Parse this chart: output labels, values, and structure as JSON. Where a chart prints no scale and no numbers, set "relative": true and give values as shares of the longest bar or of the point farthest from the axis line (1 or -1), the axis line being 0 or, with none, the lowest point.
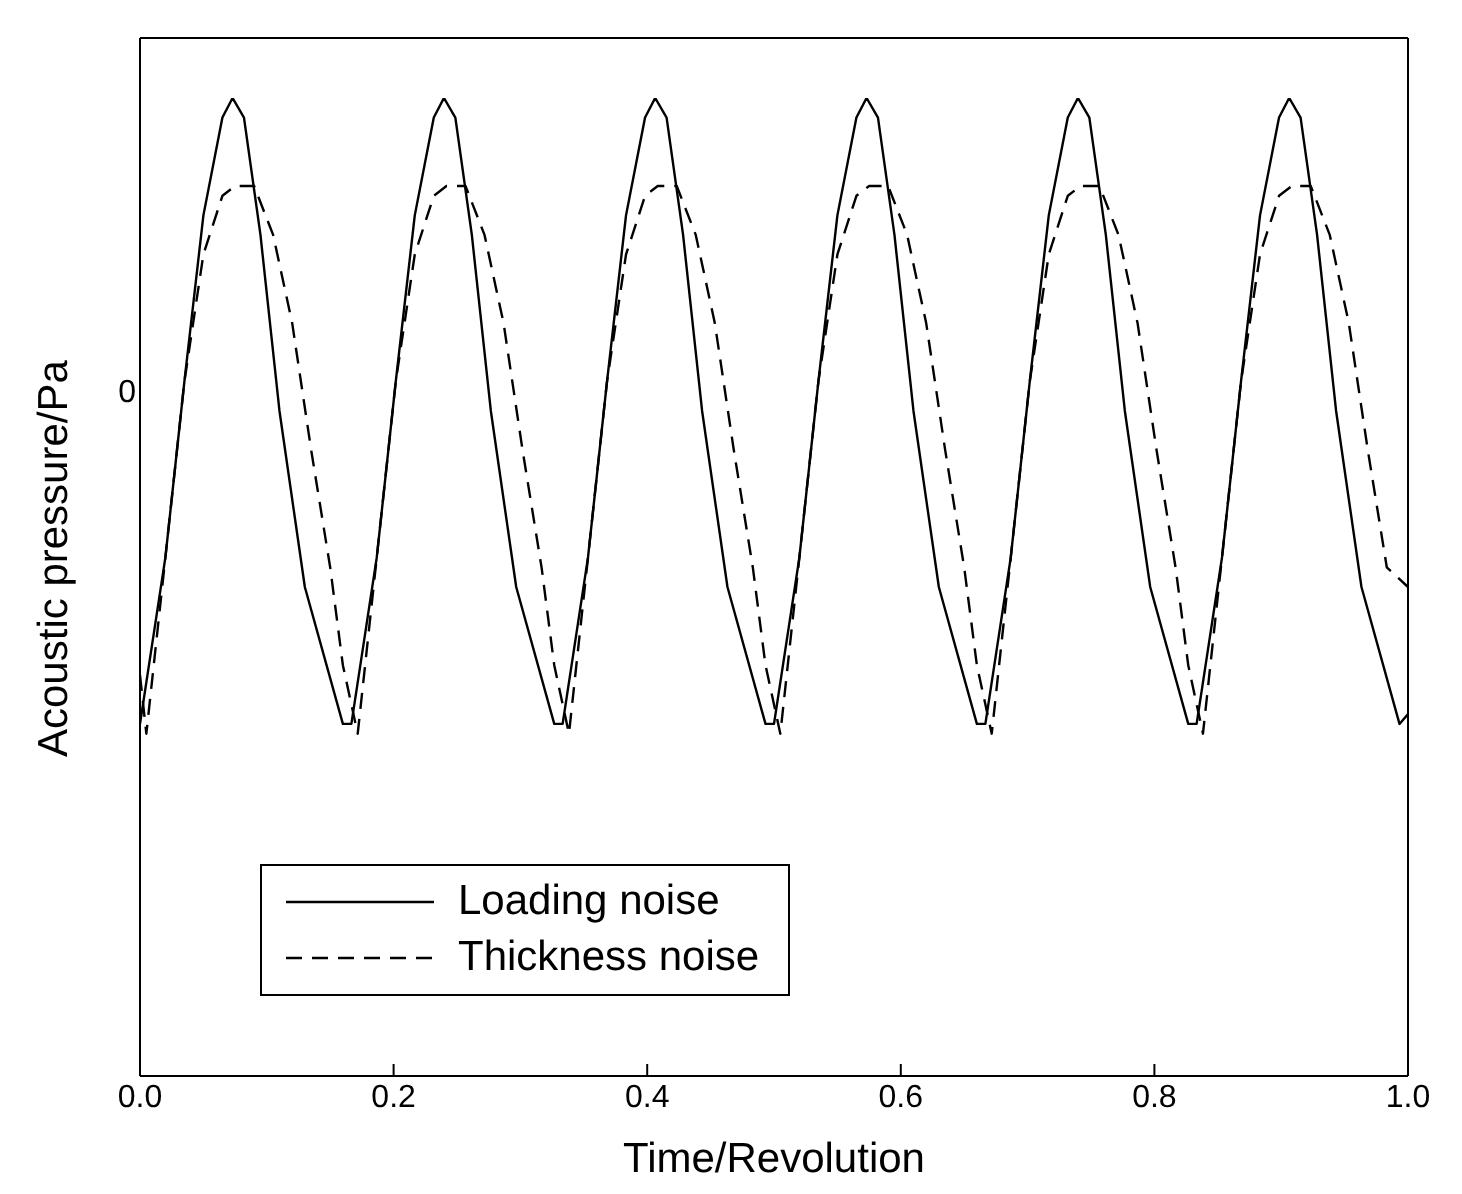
{
  "chart_data": {
    "type": "line",
    "xlabel": "Time/Revolution",
    "ylabel": "Acoustic pressure/Pa",
    "relative": true,
    "annotations": [
      "0"
    ],
    "xlim": [
      0,
      1
    ],
    "xticks": [
      {
        "value": 0,
        "label": "0.0"
      },
      {
        "value": 0.2,
        "label": "0.2"
      },
      {
        "value": 0.4,
        "label": "0.4"
      },
      {
        "value": 0.6,
        "label": "0.6"
      },
      {
        "value": 0.8,
        "label": "0.8"
      },
      {
        "value": 1,
        "label": "1.0"
      }
    ],
    "grid": false,
    "legend": "bottom left",
    "marker": "none",
    "series": [
      {
        "name": "Loading noise",
        "color": "#000000",
        "line_style": "solid",
        "x": [
          0,
          0.02,
          0.035,
          0.05,
          0.065,
          0.073,
          0.082,
          0.095,
          0.11,
          0.13,
          0.16,
          0.1667,
          0.1867,
          0.2017,
          0.2167,
          0.2317,
          0.2397,
          0.2487,
          0.2617,
          0.2767,
          0.2967,
          0.3267,
          0.3333,
          0.3533,
          0.3683,
          0.3833,
          0.3983,
          0.4063,
          0.4153,
          0.4283,
          0.4433,
          0.4633,
          0.4933,
          0.5,
          0.52,
          0.535,
          0.55,
          0.565,
          0.573,
          0.582,
          0.595,
          0.61,
          0.63,
          0.66,
          0.6667,
          0.6867,
          0.7017,
          0.7167,
          0.7317,
          0.7397,
          0.7487,
          0.7617,
          0.7767,
          0.7967,
          0.8267,
          0.8333,
          0.8533,
          0.8683,
          0.8833,
          0.8983,
          0.9063,
          0.9153,
          0.9283,
          0.9433,
          0.9633,
          0.9933,
          1.0
        ],
        "values": [
          0.36,
          0.53,
          0.71,
          0.88,
          0.98,
          1,
          0.98,
          0.86,
          0.68,
          0.5,
          0.36,
          0.36,
          0.53,
          0.71,
          0.88,
          0.98,
          1,
          0.98,
          0.86,
          0.68,
          0.5,
          0.36,
          0.36,
          0.53,
          0.71,
          0.88,
          0.98,
          1,
          0.98,
          0.86,
          0.68,
          0.5,
          0.36,
          0.36,
          0.53,
          0.71,
          0.88,
          0.98,
          1,
          0.98,
          0.86,
          0.68,
          0.5,
          0.36,
          0.36,
          0.53,
          0.71,
          0.88,
          0.98,
          1,
          0.98,
          0.86,
          0.68,
          0.5,
          0.36,
          0.36,
          0.53,
          0.71,
          0.88,
          0.98,
          1,
          0.98,
          0.86,
          0.68,
          0.5,
          0.36,
          0.37
        ]
      },
      {
        "name": "Thickness noise",
        "color": "#000000",
        "line_style": "dashed",
        "x": [
          0,
          0.005,
          0.02,
          0.035,
          0.05,
          0.065,
          0.075,
          0.09,
          0.105,
          0.12,
          0.135,
          0.15,
          0.16,
          0.1717,
          0.1867,
          0.2017,
          0.2167,
          0.2317,
          0.2417,
          0.2567,
          0.2717,
          0.2867,
          0.3017,
          0.3167,
          0.3267,
          0.3383,
          0.3533,
          0.3683,
          0.3833,
          0.3983,
          0.4083,
          0.4233,
          0.4383,
          0.4533,
          0.4683,
          0.4833,
          0.4933,
          0.505,
          0.52,
          0.535,
          0.55,
          0.565,
          0.575,
          0.59,
          0.605,
          0.62,
          0.635,
          0.65,
          0.66,
          0.6717,
          0.6867,
          0.7017,
          0.7167,
          0.7317,
          0.7417,
          0.7567,
          0.7717,
          0.7867,
          0.8017,
          0.8167,
          0.8267,
          0.8383,
          0.8533,
          0.8683,
          0.8833,
          0.8983,
          0.9083,
          0.9233,
          0.9383,
          0.9533,
          0.9683,
          0.9833,
          1.0
        ],
        "values": [
          0.41,
          0.35,
          0.53,
          0.71,
          0.84,
          0.9,
          0.91,
          0.91,
          0.86,
          0.77,
          0.64,
          0.52,
          0.42,
          0.35,
          0.53,
          0.71,
          0.84,
          0.9,
          0.91,
          0.91,
          0.86,
          0.77,
          0.64,
          0.52,
          0.42,
          0.35,
          0.53,
          0.71,
          0.84,
          0.9,
          0.91,
          0.91,
          0.86,
          0.77,
          0.64,
          0.52,
          0.42,
          0.35,
          0.53,
          0.71,
          0.84,
          0.9,
          0.91,
          0.91,
          0.86,
          0.77,
          0.64,
          0.52,
          0.42,
          0.35,
          0.53,
          0.71,
          0.84,
          0.9,
          0.91,
          0.91,
          0.86,
          0.77,
          0.64,
          0.52,
          0.42,
          0.35,
          0.53,
          0.71,
          0.84,
          0.9,
          0.91,
          0.91,
          0.86,
          0.77,
          0.64,
          0.52,
          0.5
        ]
      }
    ]
  }
}
